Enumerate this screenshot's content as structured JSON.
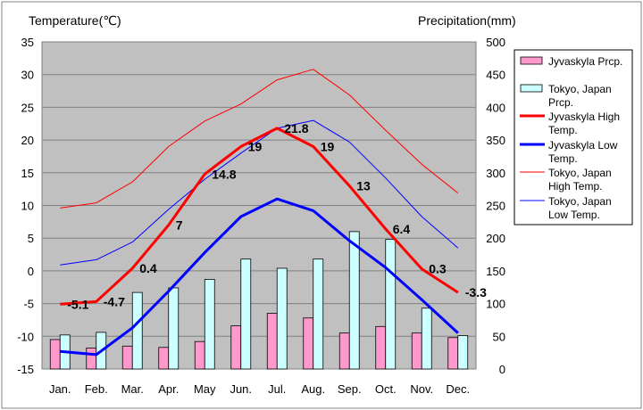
{
  "chart_data": {
    "type": "bar",
    "left_axis_title": "Temperature(℃)",
    "right_axis_title": "Precipitation(mm)",
    "categories": [
      "Jan.",
      "Feb.",
      "Mar.",
      "Apr.",
      "May",
      "Jun.",
      "Jul.",
      "Aug.",
      "Sep.",
      "Oct.",
      "Nov.",
      "Dec."
    ],
    "temp_axis": {
      "min": -15,
      "max": 35,
      "step": 5,
      "ticks": [
        "35",
        "30",
        "25",
        "20",
        "15",
        "10",
        "5",
        "0",
        "-5",
        "-10",
        "-15"
      ]
    },
    "precip_axis": {
      "min": 0,
      "max": 500,
      "step": 50,
      "ticks": [
        "500",
        "450",
        "400",
        "350",
        "300",
        "250",
        "200",
        "150",
        "100",
        "50",
        "0"
      ]
    },
    "bar_series": [
      {
        "name": "Jyvaskyla Prcp.",
        "color": "#ff99cc",
        "values": [
          45,
          32,
          35,
          33,
          42,
          66,
          85,
          78,
          55,
          65,
          55,
          48
        ]
      },
      {
        "name": "Tokyo, Japan Prcp.",
        "color": "#ccffff",
        "values": [
          52,
          56,
          117,
          124,
          137,
          168,
          154,
          168,
          210,
          198,
          93,
          51
        ]
      }
    ],
    "line_series": [
      {
        "name": "Jyvaskyla High Temp.",
        "color": "#ff0000",
        "width": 3,
        "values": [
          -5.1,
          -4.7,
          0.4,
          7,
          14.8,
          19,
          21.8,
          19,
          13,
          6.4,
          0.3,
          -3.3
        ],
        "labels": [
          "-5.1",
          "-4.7",
          "0.4",
          "7",
          "14.8",
          "19",
          "21.8",
          "19",
          "13",
          "6.4",
          "0.3",
          "-3.3"
        ]
      },
      {
        "name": "Jyvaskyla Low Temp.",
        "color": "#0000ff",
        "width": 3,
        "values": [
          -12.3,
          -12.8,
          -8.7,
          -3.1,
          2.8,
          8.3,
          11,
          9.2,
          4.6,
          0.5,
          -4.4,
          -9.5
        ]
      },
      {
        "name": "Tokyo, Japan High Temp.",
        "color": "#ff0000",
        "width": 1,
        "values": [
          9.6,
          10.4,
          13.6,
          19,
          22.9,
          25.5,
          29.2,
          30.8,
          26.9,
          21.5,
          16.3,
          11.9
        ]
      },
      {
        "name": "Tokyo, Japan Low Temp.",
        "color": "#0000ff",
        "width": 1,
        "values": [
          0.9,
          1.7,
          4.4,
          9.4,
          14,
          18,
          21.8,
          23,
          19.7,
          14.2,
          8.3,
          3.5
        ]
      }
    ],
    "legend": {
      "placement": "right",
      "entries": [
        {
          "name": "Jyvaskyla Prcp.",
          "kind": "bar",
          "color": "#ff99cc"
        },
        {
          "name": "Tokyo, Japan Prcp.",
          "kind": "bar",
          "color": "#ccffff"
        },
        {
          "name": "Jyvaskyla High Temp.",
          "kind": "line",
          "color": "#ff0000",
          "width": 3
        },
        {
          "name": "Jyvaskyla Low Temp.",
          "kind": "line",
          "color": "#0000ff",
          "width": 3
        },
        {
          "name": "Tokyo, Japan High Temp.",
          "kind": "line",
          "color": "#ff0000",
          "width": 1
        },
        {
          "name": "Tokyo, Japan Low Temp.",
          "kind": "line",
          "color": "#0000ff",
          "width": 1
        }
      ]
    },
    "plot_background": "#c0c0c0",
    "grid": true
  }
}
